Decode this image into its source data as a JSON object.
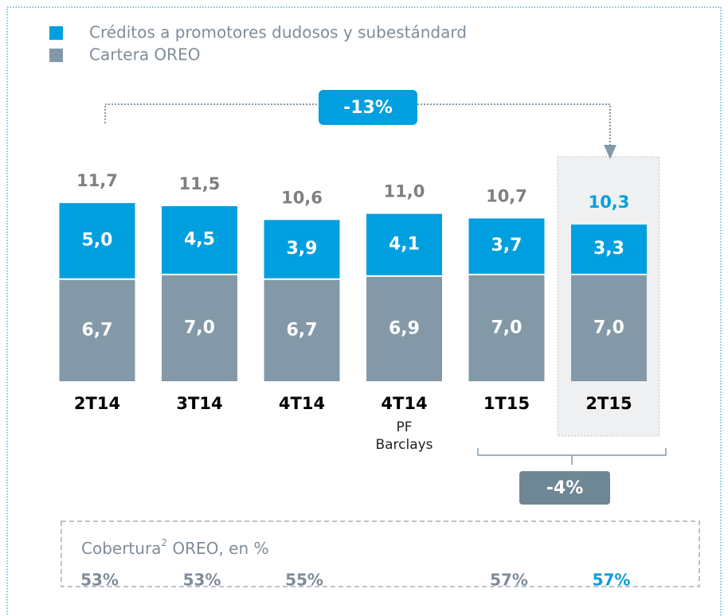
{
  "chart_data": {
    "type": "stacked_bar",
    "categories": [
      "2T14",
      "3T14",
      "4T14",
      "4T14",
      "1T15",
      "2T15"
    ],
    "category_notes": [
      null,
      null,
      null,
      "PF Barclays",
      null,
      null
    ],
    "series": [
      {
        "name": "Cartera OREO",
        "color": "#8499a8",
        "values": [
          6.7,
          7.0,
          6.7,
          6.9,
          7.0,
          7.0
        ],
        "value_labels": [
          "6,7",
          "7,0",
          "6,7",
          "6,9",
          "7,0",
          "7,0"
        ]
      },
      {
        "name": "Créditos a promotores dudosos y subestándard",
        "color": "#009fdf",
        "values": [
          5.0,
          4.5,
          3.9,
          4.1,
          3.7,
          3.3
        ],
        "value_labels": [
          "5,0",
          "4,5",
          "3,9",
          "4,1",
          "3,7",
          "3,3"
        ]
      }
    ],
    "totals": [
      11.7,
      11.5,
      10.6,
      11.0,
      10.7,
      10.3
    ],
    "total_labels": [
      "11,7",
      "11,5",
      "10,6",
      "11,0",
      "10,7",
      "10,3"
    ],
    "total_colors": [
      "#7f7f7f",
      "#7f7f7f",
      "#7f7f7f",
      "#7f7f7f",
      "#7f7f7f",
      "#009fdf"
    ],
    "annotations": [
      {
        "text": "-13%",
        "color": "#009fdf"
      },
      {
        "text": "-4%",
        "color": "#6f8794"
      }
    ],
    "coverage": {
      "title": "Cobertura",
      "sup": "2",
      "title_rest": " OREO, en %",
      "values": [
        53,
        53,
        55,
        null,
        57,
        57
      ],
      "value_labels": [
        "53%",
        "53%",
        "55%",
        null,
        "57%",
        "57%"
      ],
      "colors": [
        "#7f8c99",
        "#7f8c99",
        "#7f8c99",
        null,
        "#7f8c99",
        "#009fdf"
      ]
    }
  }
}
